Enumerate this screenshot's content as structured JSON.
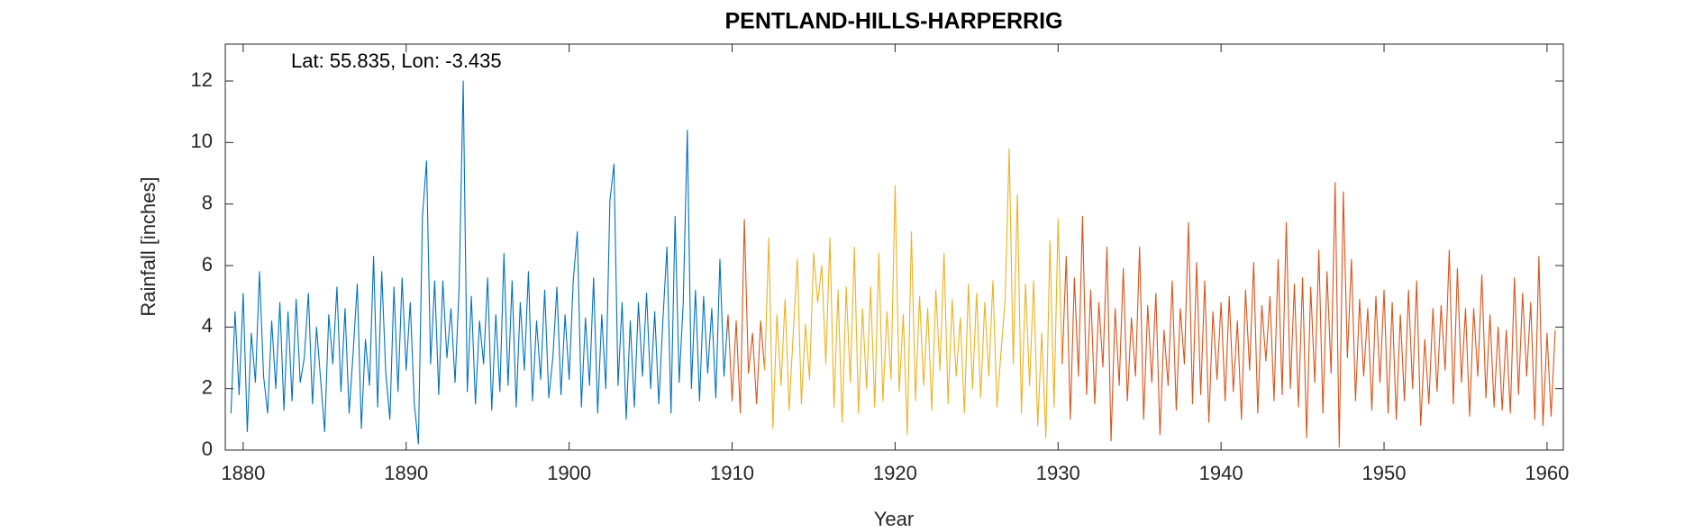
{
  "chart_data": {
    "type": "line",
    "title": "PENTLAND-HILLS-HARPERRIG",
    "annotation": "Lat: 55.835, Lon: -3.435",
    "x_label": "Year",
    "y_label": "Rainfall [inches]",
    "xlim": [
      1878.9,
      1961.0
    ],
    "ylim": [
      0,
      13.2
    ],
    "xticks": [
      1880,
      1890,
      1900,
      1910,
      1920,
      1930,
      1940,
      1950,
      1960
    ],
    "yticks": [
      0,
      2,
      4,
      6,
      8,
      10,
      12
    ],
    "series": [
      {
        "color": "#0072BD",
        "x": [
          1879.25,
          1879.5,
          1879.75,
          1880,
          1880.25,
          1880.5,
          1880.75,
          1881,
          1881.25,
          1881.5,
          1881.75,
          1882,
          1882.25,
          1882.5,
          1882.75,
          1883,
          1883.25,
          1883.5,
          1883.75,
          1884,
          1884.25,
          1884.5,
          1884.75,
          1885,
          1885.25,
          1885.5,
          1885.75,
          1886,
          1886.25,
          1886.5,
          1886.75,
          1887,
          1887.25,
          1887.5,
          1887.75,
          1888,
          1888.25,
          1888.5,
          1888.75,
          1889,
          1889.25,
          1889.5,
          1889.75,
          1890,
          1890.25,
          1890.5,
          1890.75,
          1891,
          1891.25,
          1891.5,
          1891.75,
          1892,
          1892.25,
          1892.5,
          1892.75,
          1893,
          1893.25,
          1893.5,
          1893.75,
          1894,
          1894.25,
          1894.5,
          1894.75,
          1895,
          1895.25,
          1895.5,
          1895.75,
          1896,
          1896.25,
          1896.5,
          1896.75,
          1897,
          1897.25,
          1897.5,
          1897.75,
          1898,
          1898.25,
          1898.5,
          1898.75,
          1899,
          1899.25,
          1899.5,
          1899.75,
          1900,
          1900.25,
          1900.5,
          1900.75,
          1901,
          1901.25,
          1901.5,
          1901.75,
          1902,
          1902.25,
          1902.5,
          1902.75,
          1903,
          1903.25,
          1903.5,
          1903.75,
          1904,
          1904.25,
          1904.5,
          1904.75,
          1905,
          1905.25,
          1905.5,
          1905.75,
          1906,
          1906.25,
          1906.5,
          1906.75,
          1907,
          1907.25,
          1907.5,
          1907.75,
          1908,
          1908.25,
          1908.5,
          1908.75,
          1909,
          1909.25,
          1909.5,
          1909.75
        ],
        "values": [
          1.2,
          4.5,
          1.8,
          5.1,
          0.6,
          3.8,
          2.2,
          5.8,
          2.4,
          1.2,
          4.2,
          2.0,
          4.8,
          1.3,
          4.5,
          1.6,
          4.9,
          2.2,
          3.0,
          5.1,
          1.5,
          4.0,
          2.3,
          0.6,
          4.4,
          2.8,
          5.3,
          1.9,
          4.6,
          1.2,
          3.2,
          5.4,
          0.7,
          3.6,
          2.1,
          6.3,
          1.4,
          5.8,
          2.5,
          1.0,
          5.3,
          1.9,
          5.6,
          2.6,
          4.8,
          1.5,
          0.2,
          7.6,
          9.4,
          2.8,
          5.5,
          1.8,
          5.5,
          3.0,
          4.6,
          2.2,
          5.3,
          12.0,
          1.9,
          5.0,
          1.5,
          4.2,
          2.8,
          5.6,
          1.3,
          4.4,
          1.9,
          6.4,
          2.1,
          5.5,
          1.4,
          4.8,
          2.6,
          5.8,
          1.6,
          4.2,
          2.3,
          5.2,
          1.7,
          3.0,
          5.3,
          1.8,
          4.4,
          2.3,
          5.5,
          7.1,
          1.4,
          4.3,
          2.1,
          5.6,
          1.2,
          4.4,
          2.0,
          8.1,
          9.3,
          2.1,
          4.8,
          1.0,
          4.2,
          1.4,
          4.8,
          2.4,
          5.1,
          2.0,
          4.5,
          1.5,
          4.2,
          6.6,
          1.2,
          7.6,
          2.2,
          4.8,
          10.4,
          2.0,
          5.2,
          1.6,
          5.0,
          2.5,
          4.6,
          1.7,
          6.2,
          2.4,
          4.4
        ]
      },
      {
        "color": "#D95319",
        "x": [
          1909.75,
          1910,
          1910.25,
          1910.5,
          1910.75,
          1911,
          1911.25,
          1911.5,
          1911.75,
          1912
        ],
        "values": [
          4.4,
          1.6,
          4.2,
          1.2,
          7.5,
          2.5,
          3.8,
          1.5,
          4.2,
          2.6
        ]
      },
      {
        "color": "#EDB120",
        "x": [
          1912,
          1912.25,
          1912.5,
          1912.75,
          1913,
          1913.25,
          1913.5,
          1913.75,
          1914,
          1914.25,
          1914.5,
          1914.75,
          1915,
          1915.25,
          1915.5,
          1915.75,
          1916,
          1916.25,
          1916.5,
          1916.75,
          1917,
          1917.25,
          1917.5,
          1917.75,
          1918,
          1918.25,
          1918.5,
          1918.75,
          1919,
          1919.25,
          1919.5,
          1919.75,
          1920,
          1920.25,
          1920.5,
          1920.75,
          1921,
          1921.25,
          1921.5,
          1921.75,
          1922,
          1922.25,
          1922.5,
          1922.75,
          1923,
          1923.25,
          1923.5,
          1923.75,
          1924,
          1924.25,
          1924.5,
          1924.75,
          1925,
          1925.25,
          1925.5,
          1925.75,
          1926,
          1926.25,
          1926.5,
          1926.75,
          1927,
          1927.25,
          1927.5,
          1927.75,
          1928,
          1928.25,
          1928.5,
          1928.75,
          1929,
          1929.25,
          1929.5,
          1929.75,
          1930,
          1930.25
        ],
        "values": [
          2.6,
          6.9,
          0.7,
          4.4,
          2.1,
          4.9,
          1.3,
          3.8,
          6.2,
          1.5,
          4.1,
          2.3,
          6.4,
          4.8,
          6.0,
          2.8,
          6.9,
          1.4,
          5.2,
          0.9,
          5.3,
          2.2,
          6.6,
          1.2,
          4.6,
          2.0,
          5.3,
          1.4,
          6.4,
          1.6,
          4.5,
          2.3,
          8.6,
          1.9,
          4.4,
          0.5,
          7.1,
          1.6,
          5.0,
          2.1,
          4.6,
          1.3,
          5.2,
          2.6,
          6.4,
          1.5,
          4.9,
          2.4,
          4.3,
          1.2,
          5.4,
          2.0,
          5.1,
          1.7,
          4.8,
          2.4,
          5.5,
          1.4,
          3.2,
          4.9,
          9.8,
          2.8,
          8.3,
          1.2,
          5.4,
          2.1,
          5.5,
          0.8,
          3.8,
          0.4,
          6.8,
          1.4,
          7.5,
          2.8
        ]
      },
      {
        "color": "#D95319",
        "x": [
          1930.25,
          1930.5,
          1930.75,
          1931,
          1931.25,
          1931.5,
          1931.75,
          1932,
          1932.25,
          1932.5,
          1932.75,
          1933,
          1933.25,
          1933.5,
          1933.75,
          1934,
          1934.25,
          1934.5,
          1934.75,
          1935,
          1935.25,
          1935.5,
          1935.75,
          1936,
          1936.25,
          1936.5,
          1936.75,
          1937,
          1937.25,
          1937.5,
          1937.75,
          1938,
          1938.25,
          1938.5,
          1938.75,
          1939,
          1939.25,
          1939.5,
          1939.75,
          1940,
          1940.25,
          1940.5,
          1940.75,
          1941,
          1941.25,
          1941.5,
          1941.75,
          1942,
          1942.25,
          1942.5,
          1942.75,
          1943,
          1943.25,
          1943.5,
          1943.75,
          1944,
          1944.25,
          1944.5,
          1944.75,
          1945,
          1945.25,
          1945.5,
          1945.75,
          1946,
          1946.25,
          1946.5,
          1946.75,
          1947,
          1947.25,
          1947.5,
          1947.75,
          1948,
          1948.25,
          1948.5,
          1948.75,
          1949,
          1949.25,
          1949.5,
          1949.75,
          1950,
          1950.25,
          1950.5,
          1950.75,
          1951,
          1951.25,
          1951.5,
          1951.75,
          1952,
          1952.25,
          1952.5,
          1952.75,
          1953,
          1953.25,
          1953.5,
          1953.75,
          1954,
          1954.25,
          1954.5,
          1954.75,
          1955,
          1955.25,
          1955.5,
          1955.75,
          1956,
          1956.25,
          1956.5,
          1956.75,
          1957,
          1957.25,
          1957.5,
          1957.75,
          1958,
          1958.25,
          1958.5,
          1958.75,
          1959,
          1959.25,
          1959.5,
          1959.75,
          1960,
          1960.25,
          1960.5
        ],
        "values": [
          2.8,
          6.3,
          1.0,
          5.6,
          2.4,
          7.6,
          1.8,
          5.2,
          1.5,
          4.8,
          2.7,
          6.6,
          0.3,
          4.6,
          2.1,
          5.9,
          1.6,
          4.3,
          2.4,
          6.6,
          1.0,
          4.7,
          2.2,
          5.1,
          0.5,
          3.9,
          2.1,
          5.5,
          1.3,
          4.6,
          2.8,
          7.4,
          1.5,
          6.1,
          1.8,
          5.5,
          0.9,
          4.5,
          2.3,
          4.8,
          1.6,
          5.0,
          1.9,
          4.2,
          1.0,
          5.2,
          2.6,
          6.1,
          1.2,
          4.7,
          2.9,
          5.0,
          1.6,
          6.2,
          1.8,
          7.4,
          2.0,
          5.4,
          1.4,
          5.6,
          0.4,
          5.3,
          2.2,
          6.5,
          1.2,
          5.8,
          2.5,
          8.7,
          0.1,
          8.4,
          3.0,
          6.2,
          1.6,
          4.9,
          2.4,
          4.6,
          1.3,
          5.0,
          2.2,
          5.2,
          1.2,
          4.8,
          1.0,
          4.4,
          1.6,
          5.2,
          2.0,
          5.5,
          0.8,
          3.6,
          1.5,
          4.6,
          1.9,
          4.7,
          2.6,
          6.5,
          1.5,
          5.9,
          2.2,
          4.6,
          1.1,
          4.6,
          2.4,
          5.7,
          1.7,
          4.4,
          1.4,
          4.0,
          1.3,
          3.9,
          1.2,
          5.6,
          1.8,
          5.1,
          2.4,
          4.8,
          1.0,
          6.3,
          0.8,
          3.8,
          1.1,
          3.9
        ]
      }
    ]
  }
}
